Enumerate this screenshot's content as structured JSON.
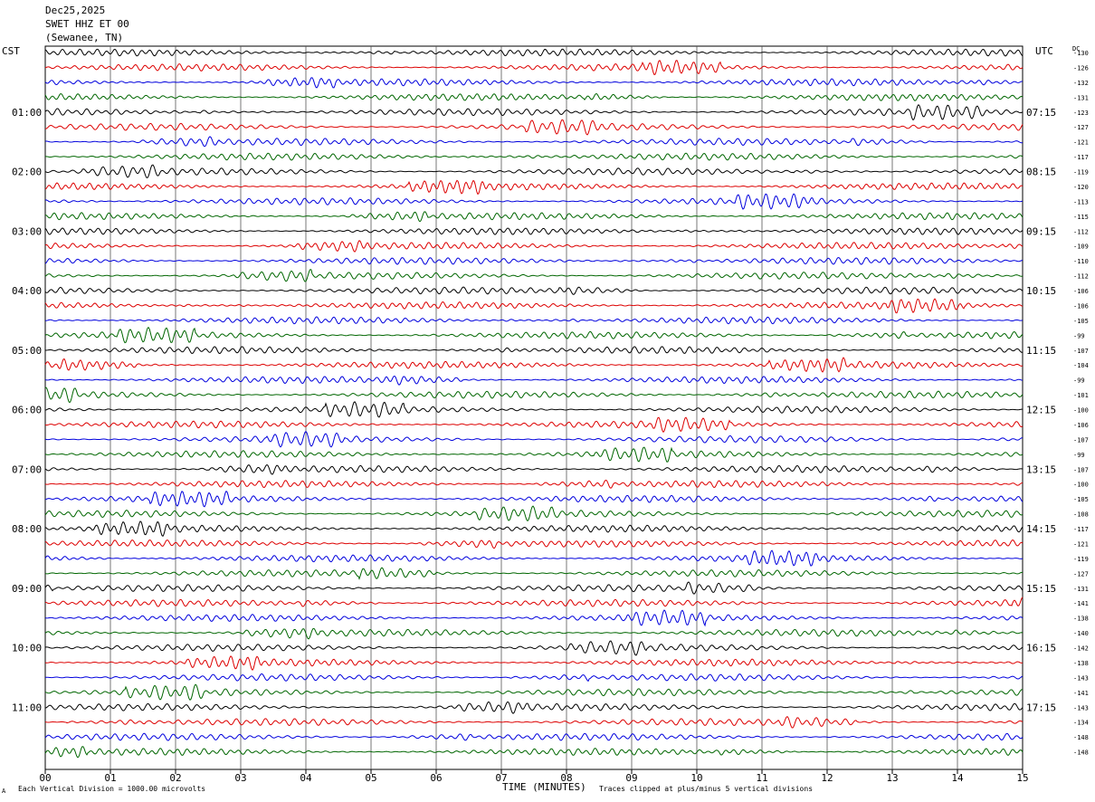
{
  "header": {
    "date": "Dec25,2025",
    "station": "SWET HHZ ET 00",
    "location": "(Sewanee, TN)"
  },
  "timezone_left": "CST",
  "timezone_right": "UTC",
  "dc_label": "DC",
  "footer_left": "Each Vertical Division = 1000.00 microvolts",
  "footer_right": "Traces clipped at plus/minus 5 vertical divisions",
  "corner_mark": "A",
  "colors": [
    "#000000",
    "#dd0000",
    "#0000dd",
    "#006600"
  ],
  "chart_data": {
    "type": "line",
    "title": "",
    "xlabel": "TIME (MINUTES)",
    "ylabel": "",
    "xlim": [
      0,
      15
    ],
    "x_ticks": [
      "00",
      "01",
      "02",
      "03",
      "04",
      "05",
      "06",
      "07",
      "08",
      "09",
      "10",
      "11",
      "12",
      "13",
      "14",
      "15"
    ],
    "left_hour_labels": [
      "01:00",
      "02:00",
      "03:00",
      "04:00",
      "05:00",
      "06:00",
      "07:00",
      "08:00",
      "09:00",
      "10:00",
      "11:00"
    ],
    "right_hour_labels": [
      "07:15",
      "08:15",
      "09:15",
      "10:15",
      "11:15",
      "12:15",
      "13:15",
      "14:15",
      "15:15",
      "16:15",
      "17:15"
    ],
    "trace_count": 48,
    "dc_offsets": [
      "-130",
      "-126",
      "-132",
      "-131",
      "-123",
      "-127",
      "-121",
      "-117",
      "-119",
      "-120",
      "-113",
      "-115",
      "-112",
      "-109",
      "-110",
      "-112",
      "-106",
      "-106",
      "-105",
      "-99",
      "-107",
      "-104",
      "-99",
      "-101",
      "-100",
      "-106",
      "-107",
      "-99",
      "-107",
      "-100",
      "-105",
      "-108",
      "-117",
      "-121",
      "-119",
      "-127",
      "-131",
      "-141",
      "-138",
      "-140",
      "-142",
      "-138",
      "-143",
      "-141",
      "-143",
      "-134",
      "-148",
      "-148"
    ],
    "grid": true
  }
}
